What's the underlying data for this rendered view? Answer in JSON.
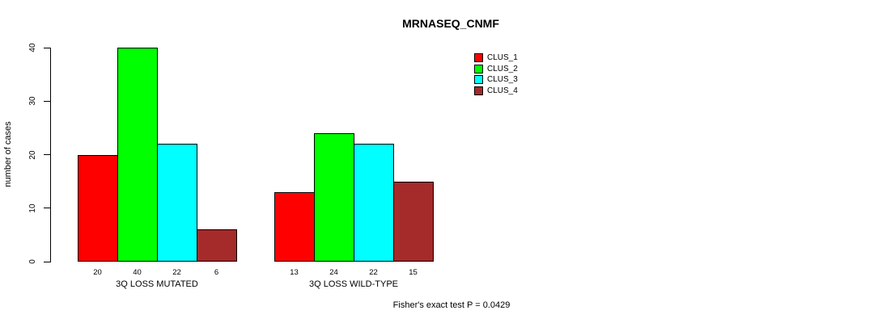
{
  "title": "MRNASEQ_CNMF",
  "footer": "Fisher's exact test P = 0.0429",
  "chart_data": {
    "type": "bar",
    "title": "MRNASEQ_CNMF",
    "ylabel": "number of cases",
    "xlabel": "",
    "categories": [
      "3Q LOSS MUTATED",
      "3Q LOSS WILD-TYPE"
    ],
    "series": [
      {
        "name": "CLUS_1",
        "color": "#ff0000",
        "values": [
          20,
          13
        ]
      },
      {
        "name": "CLUS_2",
        "color": "#00ff00",
        "values": [
          40,
          24
        ]
      },
      {
        "name": "CLUS_3",
        "color": "#00ffff",
        "values": [
          22,
          22
        ]
      },
      {
        "name": "CLUS_4",
        "color": "#a52a2a",
        "values": [
          6,
          15
        ]
      }
    ],
    "bar_value_labels": [
      [
        20,
        40,
        22,
        6
      ],
      [
        13,
        24,
        22,
        15
      ]
    ],
    "yticks": [
      0,
      10,
      20,
      30,
      40
    ],
    "ylim": [
      0,
      40
    ],
    "grid": false,
    "legend_position": "top-right",
    "annotation": "Fisher's exact test P = 0.0429"
  }
}
